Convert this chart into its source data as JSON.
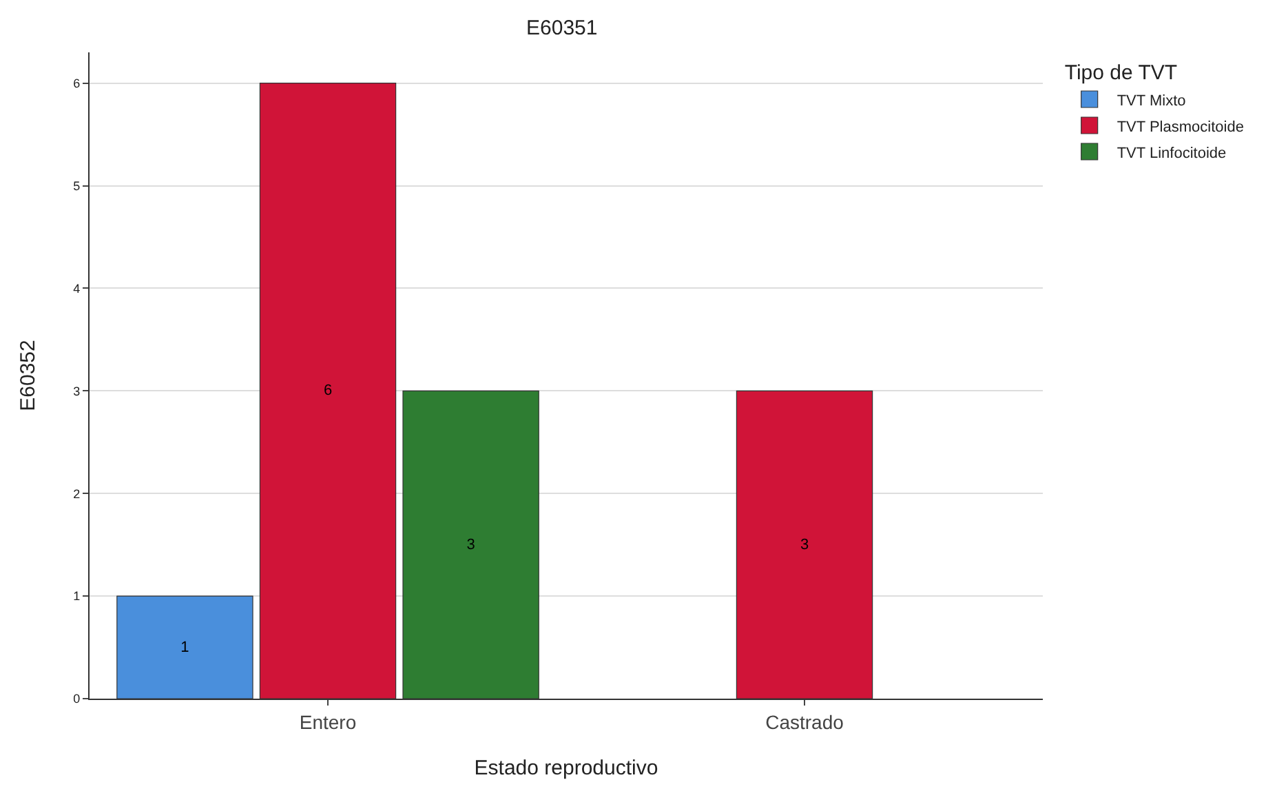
{
  "chart_data": {
    "type": "bar",
    "title": "E60351",
    "xlabel": "Estado reproductivo",
    "ylabel": "E60352",
    "legend_title": "Tipo de TVT",
    "categories": [
      "Entero",
      "Castrado"
    ],
    "series": [
      {
        "name": "TVT Mixto",
        "color": "#4a8fdc",
        "values": [
          1,
          null
        ]
      },
      {
        "name": "TVT Plasmocitoide",
        "color": "#d01438",
        "values": [
          6,
          3
        ]
      },
      {
        "name": "TVT Linfocitoide",
        "color": "#2e7d32",
        "values": [
          3,
          null
        ]
      }
    ],
    "ylim": [
      0,
      6.3
    ],
    "yticks": [
      0,
      1,
      2,
      3,
      4,
      5,
      6
    ],
    "grid": "y",
    "legend": "top right",
    "data_labels": true
  }
}
